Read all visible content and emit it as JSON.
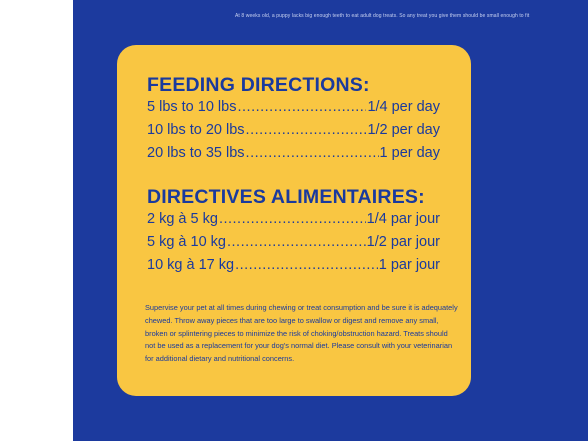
{
  "top_text": "At 8 weeks old, a puppy lacks big enough teeth to eat adult dog treats. So any treat you give them should be small enough to fit",
  "feeding": {
    "title": "FEEDING DIRECTIONS:",
    "rows": [
      {
        "label": "5 lbs to 10 lbs",
        "value": "1/4 per day"
      },
      {
        "label": "10 lbs to 20 lbs",
        "value": "1/2 per day"
      },
      {
        "label": "20 lbs to 35 lbs",
        "value": "1 per day"
      }
    ]
  },
  "directives": {
    "title": "DIRECTIVES ALIMENTAIRES:",
    "rows": [
      {
        "label": "2 kg à 5 kg",
        "value": "1/4 par jour"
      },
      {
        "label": "5 kg à 10 kg",
        "value": "1/2 par jour"
      },
      {
        "label": "10 kg à 17 kg",
        "value": "1 par jour"
      }
    ]
  },
  "disclaimer": "Supervise your pet at all times during chewing or treat consumption and be sure it is adequately chewed. Throw away pieces that are too large to swallow or digest and remove any small, broken or splintering pieces to minimize the risk of choking/obstruction hazard. Treats should not be used as a replacement for your dog's normal diet. Please consult with your veterinarian for additional dietary and nutritional concerns.",
  "colors": {
    "background_blue": "#1c3a9e",
    "card_yellow": "#f9c642",
    "text_blue": "#1a3a9e"
  }
}
